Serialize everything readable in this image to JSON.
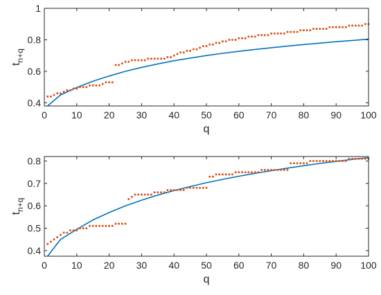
{
  "chart_data": [
    {
      "type": "scatter",
      "title": "",
      "xlabel": "q",
      "ylabel_main": "t",
      "ylabel_sub": "n+q",
      "xlim": [
        0,
        100
      ],
      "ylim": [
        0.38,
        1.0
      ],
      "xticks": [
        0,
        10,
        20,
        30,
        40,
        50,
        60,
        70,
        80,
        90,
        100
      ],
      "yticks": [
        0.4,
        0.6,
        0.8,
        1
      ],
      "ytick_labels": [
        "0.4",
        "0.6",
        "0.8",
        "1"
      ],
      "grid": false,
      "colors": {
        "curve": "#0072BD",
        "points": "#D95319"
      },
      "series": [
        {
          "kind": "line",
          "x": [
            1,
            5,
            10,
            15,
            20,
            25,
            30,
            35,
            40,
            45,
            50,
            55,
            60,
            65,
            70,
            75,
            80,
            85,
            90,
            95,
            100
          ],
          "y": [
            0.38,
            0.45,
            0.497,
            0.537,
            0.57,
            0.6,
            0.625,
            0.647,
            0.667,
            0.684,
            0.7,
            0.714,
            0.727,
            0.739,
            0.75,
            0.76,
            0.77,
            0.779,
            0.788,
            0.796,
            0.804
          ]
        },
        {
          "kind": "points",
          "x": [
            1,
            2,
            3,
            4,
            5,
            6,
            7,
            8,
            9,
            10,
            11,
            12,
            13,
            14,
            15,
            16,
            17,
            18,
            19,
            20,
            21,
            22,
            23,
            24,
            25,
            26,
            27,
            28,
            29,
            30,
            31,
            32,
            33,
            34,
            35,
            36,
            37,
            38,
            39,
            40,
            41,
            42,
            43,
            44,
            45,
            46,
            47,
            48,
            49,
            50,
            51,
            52,
            53,
            54,
            55,
            56,
            57,
            58,
            59,
            60,
            61,
            62,
            63,
            64,
            65,
            66,
            67,
            68,
            69,
            70,
            71,
            72,
            73,
            74,
            75,
            76,
            77,
            78,
            79,
            80,
            81,
            82,
            83,
            84,
            85,
            86,
            87,
            88,
            89,
            90,
            91,
            92,
            93,
            94,
            95,
            96,
            97,
            98,
            99,
            100
          ],
          "y": [
            0.44,
            0.44,
            0.45,
            0.46,
            0.46,
            0.47,
            0.48,
            0.48,
            0.49,
            0.49,
            0.5,
            0.5,
            0.5,
            0.51,
            0.51,
            0.51,
            0.51,
            0.52,
            0.53,
            0.53,
            0.53,
            0.64,
            0.64,
            0.65,
            0.66,
            0.66,
            0.67,
            0.67,
            0.67,
            0.67,
            0.67,
            0.68,
            0.68,
            0.68,
            0.68,
            0.68,
            0.68,
            0.69,
            0.69,
            0.7,
            0.71,
            0.72,
            0.72,
            0.73,
            0.73,
            0.74,
            0.74,
            0.75,
            0.76,
            0.76,
            0.77,
            0.77,
            0.78,
            0.78,
            0.79,
            0.79,
            0.8,
            0.8,
            0.8,
            0.81,
            0.81,
            0.81,
            0.82,
            0.82,
            0.82,
            0.83,
            0.83,
            0.83,
            0.83,
            0.84,
            0.84,
            0.84,
            0.84,
            0.84,
            0.85,
            0.85,
            0.85,
            0.85,
            0.86,
            0.86,
            0.86,
            0.86,
            0.87,
            0.87,
            0.87,
            0.87,
            0.87,
            0.88,
            0.88,
            0.88,
            0.88,
            0.88,
            0.88,
            0.89,
            0.89,
            0.89,
            0.89,
            0.89,
            0.9,
            0.9
          ]
        }
      ]
    },
    {
      "type": "scatter",
      "title": "",
      "xlabel": "q",
      "ylabel_main": "t",
      "ylabel_sub": "n+q",
      "xlim": [
        0,
        100
      ],
      "ylim": [
        0.375,
        0.82
      ],
      "xticks": [
        0,
        10,
        20,
        30,
        40,
        50,
        60,
        70,
        80,
        90,
        100
      ],
      "yticks": [
        0.4,
        0.5,
        0.6,
        0.7,
        0.8
      ],
      "ytick_labels": [
        "0.4",
        "0.5",
        "0.6",
        "0.7",
        "0.8"
      ],
      "grid": false,
      "colors": {
        "curve": "#0072BD",
        "points": "#D95319"
      },
      "series": [
        {
          "kind": "line",
          "x": [
            1,
            5,
            10,
            15,
            20,
            25,
            30,
            35,
            40,
            45,
            50,
            55,
            60,
            65,
            70,
            75,
            80,
            85,
            90,
            95,
            100
          ],
          "y": [
            0.375,
            0.45,
            0.495,
            0.537,
            0.57,
            0.6,
            0.625,
            0.648,
            0.668,
            0.686,
            0.703,
            0.718,
            0.732,
            0.745,
            0.757,
            0.768,
            0.779,
            0.789,
            0.798,
            0.807,
            0.815
          ]
        },
        {
          "kind": "points",
          "x": [
            1,
            2,
            3,
            4,
            5,
            6,
            7,
            8,
            9,
            10,
            11,
            12,
            13,
            14,
            15,
            16,
            17,
            18,
            19,
            20,
            21,
            22,
            23,
            24,
            25,
            26,
            27,
            28,
            29,
            30,
            31,
            32,
            33,
            34,
            35,
            36,
            37,
            38,
            39,
            40,
            41,
            42,
            43,
            44,
            45,
            46,
            47,
            48,
            49,
            50,
            51,
            52,
            53,
            54,
            55,
            56,
            57,
            58,
            59,
            60,
            61,
            62,
            63,
            64,
            65,
            66,
            67,
            68,
            69,
            70,
            71,
            72,
            73,
            74,
            75,
            76,
            77,
            78,
            79,
            80,
            81,
            82,
            83,
            84,
            85,
            86,
            87,
            88,
            89,
            90,
            91,
            92,
            93,
            94,
            95,
            96,
            97,
            98,
            99,
            100
          ],
          "y": [
            0.43,
            0.44,
            0.45,
            0.46,
            0.47,
            0.48,
            0.48,
            0.49,
            0.49,
            0.49,
            0.5,
            0.5,
            0.5,
            0.51,
            0.51,
            0.51,
            0.51,
            0.51,
            0.51,
            0.51,
            0.51,
            0.52,
            0.52,
            0.52,
            0.52,
            0.63,
            0.64,
            0.65,
            0.65,
            0.65,
            0.65,
            0.65,
            0.65,
            0.66,
            0.66,
            0.66,
            0.66,
            0.67,
            0.67,
            0.67,
            0.67,
            0.67,
            0.67,
            0.68,
            0.68,
            0.68,
            0.68,
            0.68,
            0.68,
            0.68,
            0.73,
            0.73,
            0.74,
            0.74,
            0.74,
            0.74,
            0.74,
            0.74,
            0.75,
            0.75,
            0.75,
            0.75,
            0.75,
            0.75,
            0.75,
            0.75,
            0.76,
            0.76,
            0.76,
            0.76,
            0.76,
            0.76,
            0.76,
            0.76,
            0.76,
            0.79,
            0.79,
            0.79,
            0.79,
            0.79,
            0.79,
            0.8,
            0.8,
            0.8,
            0.8,
            0.8,
            0.8,
            0.8,
            0.8,
            0.8,
            0.8,
            0.8,
            0.8,
            0.81,
            0.81,
            0.81,
            0.81,
            0.81,
            0.81,
            0.81
          ]
        }
      ]
    }
  ]
}
